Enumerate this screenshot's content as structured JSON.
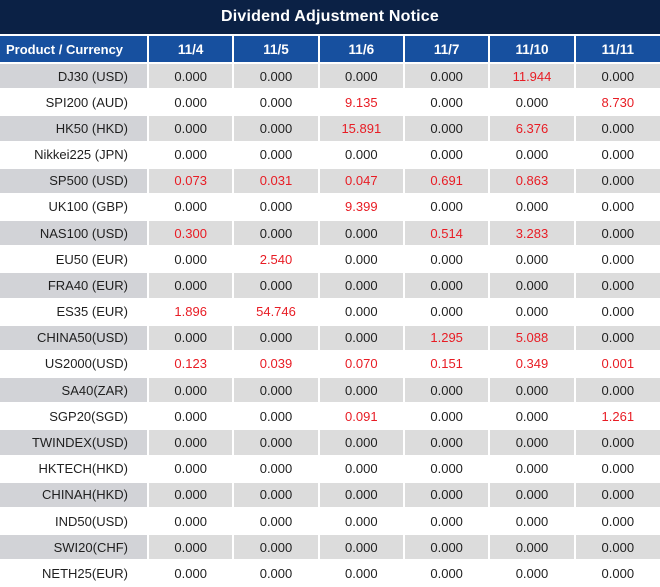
{
  "title_bar": {
    "title": "Dividend Adjustment Notice"
  },
  "table": {
    "corner_header": "Product / Currency",
    "date_columns": [
      "11/4",
      "11/5",
      "11/6",
      "11/7",
      "11/10",
      "11/11"
    ],
    "rows": [
      {
        "product": "DJ30 (USD)",
        "values": [
          "0.000",
          "0.000",
          "0.000",
          "0.000",
          "11.944",
          "0.000"
        ],
        "red_flags": [
          0,
          0,
          0,
          0,
          1,
          0
        ]
      },
      {
        "product": "SPI200 (AUD)",
        "values": [
          "0.000",
          "0.000",
          "9.135",
          "0.000",
          "0.000",
          "8.730"
        ],
        "red_flags": [
          0,
          0,
          1,
          0,
          0,
          1
        ]
      },
      {
        "product": "HK50 (HKD)",
        "values": [
          "0.000",
          "0.000",
          "15.891",
          "0.000",
          "6.376",
          "0.000"
        ],
        "red_flags": [
          0,
          0,
          1,
          0,
          1,
          0
        ]
      },
      {
        "product": "Nikkei225 (JPN)",
        "values": [
          "0.000",
          "0.000",
          "0.000",
          "0.000",
          "0.000",
          "0.000"
        ],
        "red_flags": [
          0,
          0,
          0,
          0,
          0,
          0
        ]
      },
      {
        "product": "SP500 (USD)",
        "values": [
          "0.073",
          "0.031",
          "0.047",
          "0.691",
          "0.863",
          "0.000"
        ],
        "red_flags": [
          1,
          1,
          1,
          1,
          1,
          0
        ]
      },
      {
        "product": "UK100 (GBP)",
        "values": [
          "0.000",
          "0.000",
          "9.399",
          "0.000",
          "0.000",
          "0.000"
        ],
        "red_flags": [
          0,
          0,
          1,
          0,
          0,
          0
        ]
      },
      {
        "product": "NAS100 (USD)",
        "values": [
          "0.300",
          "0.000",
          "0.000",
          "0.514",
          "3.283",
          "0.000"
        ],
        "red_flags": [
          1,
          0,
          0,
          1,
          1,
          0
        ]
      },
      {
        "product": "EU50 (EUR)",
        "values": [
          "0.000",
          "2.540",
          "0.000",
          "0.000",
          "0.000",
          "0.000"
        ],
        "red_flags": [
          0,
          1,
          0,
          0,
          0,
          0
        ]
      },
      {
        "product": "FRA40 (EUR)",
        "values": [
          "0.000",
          "0.000",
          "0.000",
          "0.000",
          "0.000",
          "0.000"
        ],
        "red_flags": [
          0,
          0,
          0,
          0,
          0,
          0
        ]
      },
      {
        "product": "ES35 (EUR)",
        "values": [
          "1.896",
          "54.746",
          "0.000",
          "0.000",
          "0.000",
          "0.000"
        ],
        "red_flags": [
          1,
          1,
          0,
          0,
          0,
          0
        ]
      },
      {
        "product": "CHINA50(USD)",
        "values": [
          "0.000",
          "0.000",
          "0.000",
          "1.295",
          "5.088",
          "0.000"
        ],
        "red_flags": [
          0,
          0,
          0,
          1,
          1,
          0
        ]
      },
      {
        "product": "US2000(USD)",
        "values": [
          "0.123",
          "0.039",
          "0.070",
          "0.151",
          "0.349",
          "0.001"
        ],
        "red_flags": [
          1,
          1,
          1,
          1,
          1,
          1
        ]
      },
      {
        "product": "SA40(ZAR)",
        "values": [
          "0.000",
          "0.000",
          "0.000",
          "0.000",
          "0.000",
          "0.000"
        ],
        "red_flags": [
          0,
          0,
          0,
          0,
          0,
          0
        ]
      },
      {
        "product": "SGP20(SGD)",
        "values": [
          "0.000",
          "0.000",
          "0.091",
          "0.000",
          "0.000",
          "1.261"
        ],
        "red_flags": [
          0,
          0,
          1,
          0,
          0,
          1
        ]
      },
      {
        "product": "TWINDEX(USD)",
        "values": [
          "0.000",
          "0.000",
          "0.000",
          "0.000",
          "0.000",
          "0.000"
        ],
        "red_flags": [
          0,
          0,
          0,
          0,
          0,
          0
        ]
      },
      {
        "product": "HKTECH(HKD)",
        "values": [
          "0.000",
          "0.000",
          "0.000",
          "0.000",
          "0.000",
          "0.000"
        ],
        "red_flags": [
          0,
          0,
          0,
          0,
          0,
          0
        ]
      },
      {
        "product": "CHINAH(HKD)",
        "values": [
          "0.000",
          "0.000",
          "0.000",
          "0.000",
          "0.000",
          "0.000"
        ],
        "red_flags": [
          0,
          0,
          0,
          0,
          0,
          0
        ]
      },
      {
        "product": "IND50(USD)",
        "values": [
          "0.000",
          "0.000",
          "0.000",
          "0.000",
          "0.000",
          "0.000"
        ],
        "red_flags": [
          0,
          0,
          0,
          0,
          0,
          0
        ]
      },
      {
        "product": "SWI20(CHF)",
        "values": [
          "0.000",
          "0.000",
          "0.000",
          "0.000",
          "0.000",
          "0.000"
        ],
        "red_flags": [
          0,
          0,
          0,
          0,
          0,
          0
        ]
      },
      {
        "product": "NETH25(EUR)",
        "values": [
          "0.000",
          "0.000",
          "0.000",
          "0.000",
          "0.000",
          "0.000"
        ],
        "red_flags": [
          0,
          0,
          0,
          0,
          0,
          0
        ]
      }
    ]
  },
  "colors": {
    "title_bar_bg": "#0b2145",
    "header_bg": "#17509f",
    "header_text": "#ffffff",
    "stripe_label_bg": "#d2d3d7",
    "stripe_value_bg": "#dcdcdc",
    "value_text": "#1f1f1f",
    "highlight_red": "#e81c24"
  }
}
